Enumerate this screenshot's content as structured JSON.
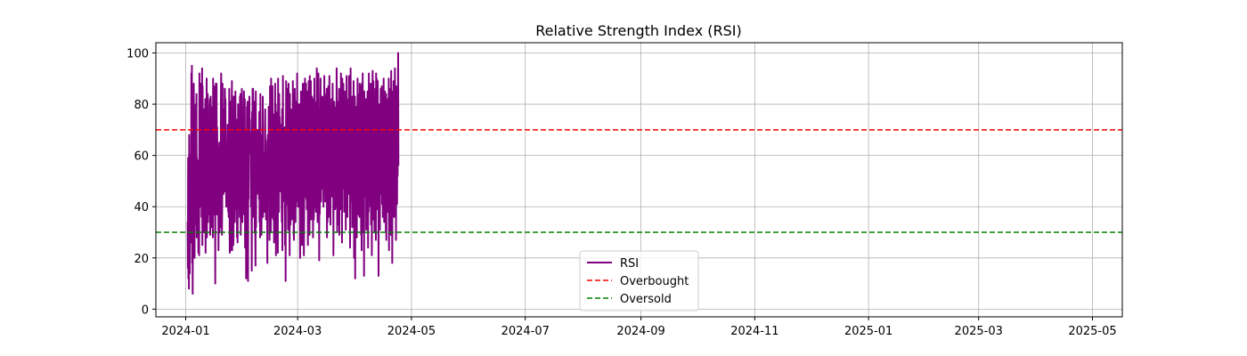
{
  "chart_data": {
    "type": "line",
    "title": "Relative Strength Index (RSI)",
    "xlabel": "",
    "ylabel": "",
    "x_range": [
      "2023-12-16",
      "2025-05-17"
    ],
    "ylim": [
      -3,
      104
    ],
    "grid": true,
    "legend_placement": "lower-center",
    "x_ticks": [
      "2024-01",
      "2024-03",
      "2024-05",
      "2024-07",
      "2024-09",
      "2024-11",
      "2025-01",
      "2025-03",
      "2025-05"
    ],
    "y_ticks": [
      0,
      20,
      40,
      60,
      80,
      100
    ],
    "series": [
      {
        "name": "RSI",
        "color": "#800080",
        "style": "solid",
        "start_date": "2024-01-02",
        "end_date": "2024-04-24",
        "values": [
          34,
          16,
          59,
          12,
          53,
          8,
          68,
          20,
          14,
          58,
          60,
          38,
          57,
          26,
          92,
          35,
          95,
          18,
          41,
          6,
          57,
          62,
          24,
          88,
          45,
          30,
          20,
          59,
          63,
          38,
          80,
          40,
          33,
          84,
          28,
          59,
          47,
          58,
          36,
          56,
          22,
          57,
          45,
          21,
          92,
          50,
          70,
          40,
          62,
          88,
          75,
          66,
          36,
          58,
          94,
          25,
          87,
          44,
          70,
          30,
          55,
          78,
          30,
          47,
          61,
          75,
          82,
          22,
          55,
          60,
          32,
          90,
          28,
          58,
          42,
          84,
          34,
          61,
          58,
          37,
          60,
          48,
          79,
          82,
          29,
          38,
          83,
          71,
          32,
          35,
          36,
          60,
          42,
          79,
          28,
          90,
          47,
          79,
          87,
          37,
          56,
          68,
          55,
          10,
          80,
          88,
          63,
          40,
          88,
          37,
          71,
          62,
          48,
          43,
          63,
          23,
          39,
          44,
          65,
          30,
          49,
          52,
          35,
          32,
          81,
          92,
          68,
          58,
          29,
          43,
          88,
          61,
          78,
          50,
          45,
          51,
          57,
          46,
          86,
          86,
          68,
          82,
          48,
          48,
          40,
          40,
          57,
          50,
          62,
          72,
          67,
          38,
          60,
          36,
          48,
          86,
          48,
          22,
          35,
          71,
          81,
          23,
          32,
          58,
          77,
          89,
          23,
          58,
          41,
          62,
          25,
          28,
          83,
          49,
          56,
          66,
          34,
          46,
          85,
          52,
          39,
          64,
          73,
          74,
          28,
          72,
          26,
          42,
          80,
          60,
          61,
          71,
          39,
          57,
          36,
          83,
          56,
          84,
          29,
          50,
          76,
          64,
          86,
          37,
          34,
          48,
          72,
          47,
          53,
          79,
          85,
          37,
          42,
          82,
          24,
          64,
          70,
          53,
          12,
          53,
          58,
          79,
          47,
          81,
          24,
          11,
          49,
          43,
          62,
          76,
          83,
          72,
          74,
          61,
          69,
          67,
          40,
          48,
          43,
          15,
          77,
          43,
          86,
          36,
          86,
          58,
          73,
          39,
          81,
          56,
          30,
          52,
          28,
          17,
          85,
          32,
          61,
          56,
          70,
          45,
          70,
          62,
          48,
          50,
          56,
          60,
          43,
          77,
          34,
          54,
          28,
          84,
          34,
          68,
          41,
          29,
          47,
          44,
          60,
          67,
          83,
          36,
          60,
          40,
          50,
          41,
          61,
          38,
          70,
          78,
          48,
          66,
          35,
          40,
          41,
          42,
          44,
          18,
          64,
          68,
          55,
          54,
          79,
          61,
          47,
          27,
          32,
          87,
          32,
          84,
          30,
          90,
          60,
          51,
          81,
          36,
          87,
          71,
          37,
          35,
          76,
          42,
          26,
          48,
          65,
          39,
          88,
          44,
          80,
          21,
          77,
          54,
          45,
          67,
          61,
          57,
          22,
          90,
          50,
          78,
          38,
          84,
          58,
          75,
          65,
          46,
          63,
          60,
          49,
          72,
          45,
          34,
          78,
          23,
          40,
          91,
          43,
          47,
          60,
          64,
          46,
          42,
          71,
          25,
          71,
          11,
          55,
          89,
          79,
          65,
          46,
          41,
          86,
          51,
          31,
          50,
          88,
          70,
          43,
          59,
          21,
          84,
          37,
          33,
          77,
          78,
          55,
          57,
          35,
          64,
          40,
          52,
          89,
          45,
          58,
          30,
          27,
          57,
          72,
          86,
          68,
          57,
          34,
          81,
          40,
          58,
          42,
          67,
          92,
          46,
          62,
          80,
          40,
          75,
          42,
          75,
          80,
          53,
          37,
          20,
          52,
          37,
          85,
          67,
          81,
          37,
          25,
          41,
          77,
          88,
          62,
          70,
          48,
          21,
          38,
          88,
          64,
          90,
          48,
          44,
          71,
          88,
          43,
          62,
          39,
          79,
          56,
          85,
          25,
          65,
          51,
          89,
          66,
          89,
          29,
          91,
          40,
          79,
          51,
          89,
          35,
          72,
          48,
          83,
          53,
          56,
          82,
          28,
          47,
          62,
          35,
          42,
          90,
          46,
          56,
          71,
          40,
          80,
          38,
          81,
          53,
          94,
          88,
          60,
          34,
          53,
          42,
          92,
          73,
          52,
          19,
          74,
          37,
          45,
          68,
          90,
          63,
          42,
          56,
          53,
          47,
          61,
          83,
          68,
          82,
          67,
          40,
          73,
          47,
          91,
          52,
          56,
          72,
          42,
          54,
          44,
          84,
          71,
          86,
          28,
          68,
          34,
          47,
          55,
          87,
          36,
          74,
          38,
          91,
          76,
          45,
          51,
          33,
          69,
          47,
          78,
          82,
          44,
          76,
          54,
          88,
          46,
          73,
          21,
          58,
          52,
          81,
          59,
          79,
          39,
          63,
          76,
          45,
          75,
          40,
          94,
          71,
          30,
          81,
          48,
          40,
          56,
          80,
          33,
          86,
          29,
          70,
          57,
          82,
          73,
          39,
          92,
          60,
          46,
          84,
          26,
          90,
          47,
          61,
          73,
          88,
          54,
          79,
          38,
          74,
          85,
          48,
          66,
          84,
          31,
          77,
          54,
          91,
          42,
          82,
          36,
          61,
          80,
          57,
          69,
          45,
          91,
          52,
          67,
          83,
          24,
          70,
          94,
          56,
          77,
          42,
          60,
          65,
          32,
          83,
          59,
          35,
          61,
          89,
          75,
          20,
          78,
          47,
          83,
          12,
          71,
          62,
          39,
          79,
          54,
          28,
          68,
          73,
          90,
          49,
          84,
          37,
          80,
          61,
          72,
          36,
          88,
          63,
          57,
          74,
          87,
          29,
          71,
          23,
          88,
          64,
          46,
          92,
          30,
          81,
          47,
          70,
          13,
          85,
          66,
          44,
          79,
          69,
          53,
          82,
          31,
          64,
          76,
          45,
          71,
          85,
          57,
          24,
          80,
          38,
          92,
          59,
          43,
          84,
          72,
          54,
          40,
          88,
          33,
          67,
          80,
          21,
          65,
          78,
          93,
          57,
          35,
          89,
          60,
          48,
          77,
          30,
          84,
          46,
          86,
          67,
          27,
          92,
          41,
          90,
          65,
          80,
          39,
          89,
          53,
          73,
          13,
          63,
          35,
          52,
          80,
          31,
          76,
          58,
          86,
          45,
          69,
          48,
          87,
          41,
          64,
          82,
          36,
          58,
          66,
          90,
          51,
          34,
          78,
          63,
          85,
          47,
          72,
          30,
          84,
          27,
          67,
          39,
          82,
          47,
          66,
          38,
          80,
          50,
          90,
          23,
          74,
          58,
          86,
          41,
          78,
          56,
          29,
          93,
          60,
          47,
          79,
          18,
          71,
          85,
          38,
          64,
          89,
          52,
          36,
          82,
          47,
          94,
          58,
          39,
          75,
          27,
          87,
          63,
          86,
          41,
          73,
          52,
          62,
          100,
          56
        ]
      },
      {
        "name": "Overbought",
        "color": "#ff0000",
        "style": "dashed",
        "level": 70
      },
      {
        "name": "Oversold",
        "color": "#008000",
        "style": "dashed",
        "level": 30
      }
    ]
  }
}
